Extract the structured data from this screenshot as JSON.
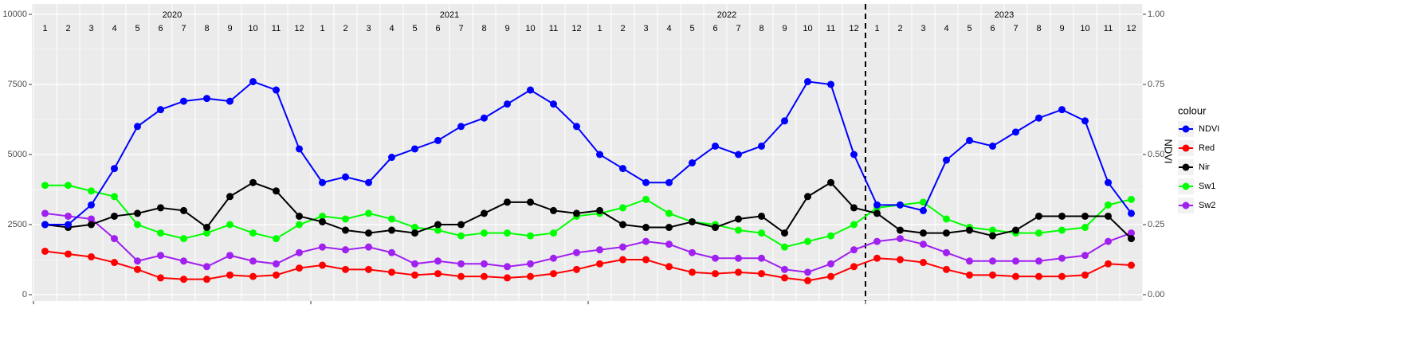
{
  "chart_data": {
    "type": "line",
    "x": [
      "2020-01",
      "2020-02",
      "2020-03",
      "2020-04",
      "2020-05",
      "2020-06",
      "2020-07",
      "2020-08",
      "2020-09",
      "2020-10",
      "2020-11",
      "2020-12",
      "2021-01",
      "2021-02",
      "2021-03",
      "2021-04",
      "2021-05",
      "2021-06",
      "2021-07",
      "2021-08",
      "2021-09",
      "2021-10",
      "2021-11",
      "2021-12",
      "2022-01",
      "2022-02",
      "2022-03",
      "2022-04",
      "2022-05",
      "2022-06",
      "2022-07",
      "2022-08",
      "2022-09",
      "2022-10",
      "2022-11",
      "2022-12",
      "2023-01",
      "2023-02",
      "2023-03",
      "2023-04",
      "2023-05",
      "2023-06",
      "2023-07",
      "2023-08",
      "2023-09",
      "2023-10",
      "2023-11",
      "2023-12"
    ],
    "xlim": [
      "2020-01",
      "2024-01"
    ],
    "xticks": [
      "2020-01",
      "2021-01",
      "2022-01",
      "2023-01"
    ],
    "years": [
      "2020",
      "2021",
      "2022",
      "2023"
    ],
    "months": [
      "1",
      "2",
      "3",
      "4",
      "5",
      "6",
      "7",
      "8",
      "9",
      "10",
      "11",
      "12"
    ],
    "vline": "2023-01",
    "ylim": [
      -227,
      10369
    ],
    "yticks": [
      0,
      2500,
      5000,
      7500,
      10000
    ],
    "y2lim": [
      -0.0227,
      1.0369
    ],
    "y2ticks": [
      {
        "value": 0,
        "label": "0.00"
      },
      {
        "value": 0.25,
        "label": "0.25"
      },
      {
        "value": 0.5,
        "label": "0.50"
      },
      {
        "value": 0.75,
        "label": "0.75"
      },
      {
        "value": 1,
        "label": "1.00"
      }
    ],
    "y2label": "NDVI",
    "legend_title": "colour",
    "legend": "right",
    "grid": true,
    "series": [
      {
        "name": "NDVI",
        "color": "#0000ff",
        "axis": "y2",
        "values": [
          0.25,
          0.25,
          0.32,
          0.45,
          0.6,
          0.66,
          0.69,
          0.7,
          0.69,
          0.76,
          0.73,
          0.52,
          0.4,
          0.42,
          0.4,
          0.49,
          0.52,
          0.55,
          0.6,
          0.63,
          0.68,
          0.73,
          0.68,
          0.6,
          0.5,
          0.45,
          0.4,
          0.4,
          0.47,
          0.53,
          0.5,
          0.53,
          0.62,
          0.76,
          0.75,
          0.5,
          0.32,
          0.32,
          0.3,
          0.48,
          0.55,
          0.53,
          0.58,
          0.63,
          0.66,
          0.62,
          0.4,
          0.29
        ]
      },
      {
        "name": "Red",
        "color": "#ff0000",
        "values": [
          1550,
          1450,
          1350,
          1150,
          900,
          600,
          550,
          550,
          700,
          650,
          700,
          950,
          1050,
          900,
          900,
          800,
          700,
          750,
          650,
          650,
          600,
          650,
          750,
          900,
          1100,
          1250,
          1250,
          1000,
          800,
          750,
          800,
          750,
          600,
          500,
          650,
          1000,
          1300,
          1250,
          1150,
          900,
          700,
          700,
          650,
          650,
          650,
          700,
          1100,
          1050
        ]
      },
      {
        "name": "Nir",
        "color": "#000000",
        "values": [
          2500,
          2400,
          2500,
          2800,
          2900,
          3100,
          3000,
          2400,
          3500,
          4000,
          3700,
          2800,
          2600,
          2300,
          2200,
          2300,
          2200,
          2500,
          2500,
          2900,
          3300,
          3300,
          3000,
          2900,
          3000,
          2500,
          2400,
          2400,
          2600,
          2400,
          2700,
          2800,
          2200,
          3500,
          4000,
          3100,
          2900,
          2300,
          2200,
          2200,
          2300,
          2100,
          2300,
          2800,
          2800,
          2800,
          2800,
          2000
        ]
      },
      {
        "name": "Sw1",
        "color": "#00ff00",
        "values": [
          3900,
          3900,
          3700,
          3500,
          2500,
          2200,
          2000,
          2200,
          2500,
          2200,
          2000,
          2500,
          2800,
          2700,
          2900,
          2700,
          2400,
          2300,
          2100,
          2200,
          2200,
          2100,
          2200,
          2800,
          2900,
          3100,
          3400,
          2900,
          2600,
          2500,
          2300,
          2200,
          1700,
          1900,
          2100,
          2500,
          3100,
          3200,
          3300,
          2700,
          2400,
          2300,
          2200,
          2200,
          2300,
          2400,
          3200,
          3400
        ]
      },
      {
        "name": "Sw2",
        "color": "#a020f0",
        "values": [
          2900,
          2800,
          2700,
          2000,
          1200,
          1400,
          1200,
          1000,
          1400,
          1200,
          1100,
          1500,
          1700,
          1600,
          1700,
          1500,
          1100,
          1200,
          1100,
          1100,
          1000,
          1100,
          1300,
          1500,
          1600,
          1700,
          1900,
          1800,
          1500,
          1300,
          1300,
          1300,
          900,
          800,
          1100,
          1600,
          1900,
          2000,
          1800,
          1500,
          1200,
          1200,
          1200,
          1200,
          1300,
          1400,
          1900,
          2200
        ]
      }
    ]
  }
}
